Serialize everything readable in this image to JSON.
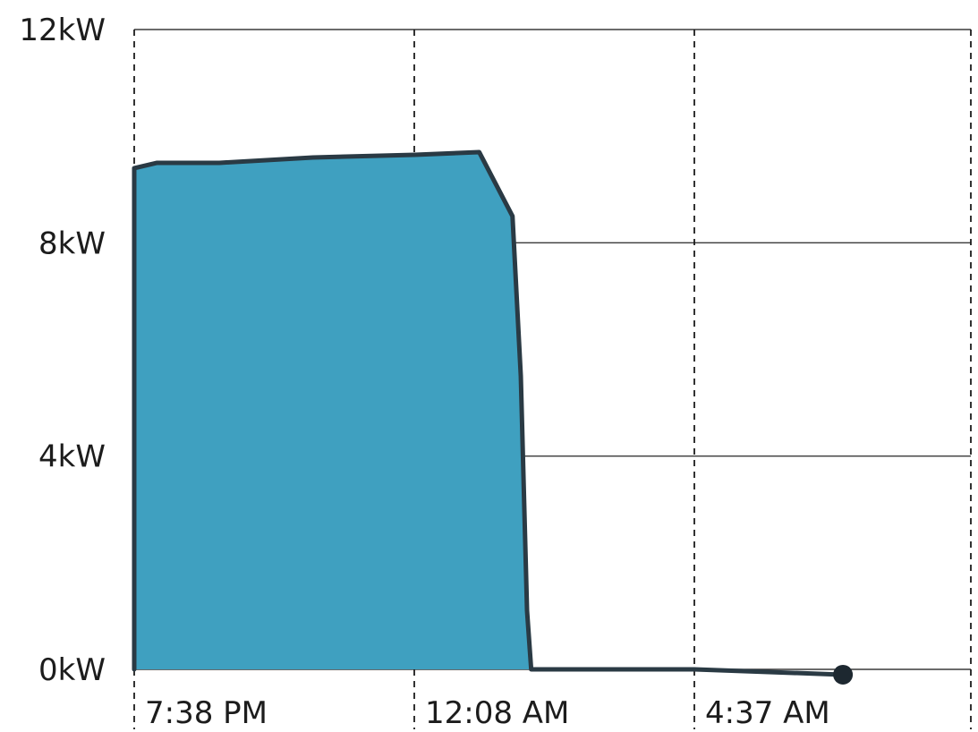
{
  "chart_data": {
    "type": "area",
    "title": "",
    "xlabel": "",
    "ylabel": "",
    "unit": "kW",
    "y_ticks": [
      "0kW",
      "4kW",
      "8kW",
      "12kW"
    ],
    "y_tick_values": [
      0,
      4,
      8,
      12
    ],
    "x_ticks": [
      "7:38 PM",
      "12:08 AM",
      "4:37 AM"
    ],
    "ylim": [
      0,
      12
    ],
    "grid": true,
    "colors": {
      "area": "#3fa0c0",
      "line": "#2a3a44"
    },
    "series": [
      {
        "points": [
          {
            "x": "7:38 PM",
            "y": 0
          },
          {
            "x": "7:38 PM",
            "y": 9.4
          },
          {
            "x": "8:00 PM",
            "y": 9.5
          },
          {
            "x": "9:00 PM",
            "y": 9.5
          },
          {
            "x": "10:30 PM",
            "y": 9.6
          },
          {
            "x": "12:08 AM",
            "y": 9.65
          },
          {
            "x": "1:10 AM",
            "y": 9.7
          },
          {
            "x": "1:42 AM",
            "y": 8.5
          },
          {
            "x": "1:50 AM",
            "y": 5.5
          },
          {
            "x": "1:56 AM",
            "y": 1.1
          },
          {
            "x": "2:00 AM",
            "y": 0
          },
          {
            "x": "4:37 AM",
            "y": 0
          },
          {
            "x": "7:00 AM",
            "y": -0.1
          }
        ]
      }
    ]
  }
}
